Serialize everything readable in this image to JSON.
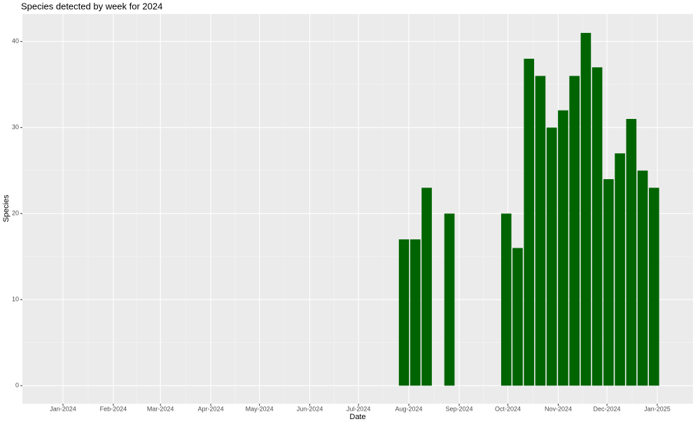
{
  "chart_data": {
    "type": "bar",
    "title": "Species detected by week for 2024",
    "x_label": "Date",
    "y_label": "Species",
    "x": [
      210,
      217,
      224,
      238,
      273,
      280,
      287,
      294,
      301,
      308,
      315,
      322,
      329,
      336,
      343,
      350,
      357,
      364
    ],
    "values": [
      17,
      17,
      23,
      20,
      20,
      16,
      38,
      36,
      30,
      32,
      36,
      41,
      37,
      24,
      27,
      31,
      25,
      23
    ],
    "color": "#006400",
    "xlim": [
      -25,
      388
    ],
    "xticks": [
      {
        "value": 0,
        "label": "Jan-2024"
      },
      {
        "value": 31,
        "label": "Feb-2024"
      },
      {
        "value": 60,
        "label": "Mar-2024"
      },
      {
        "value": 91,
        "label": "Apr-2024"
      },
      {
        "value": 121,
        "label": "May-2024"
      },
      {
        "value": 152,
        "label": "Jun-2024"
      },
      {
        "value": 182,
        "label": "Jul-2024"
      },
      {
        "value": 213,
        "label": "Aug-2024"
      },
      {
        "value": 244,
        "label": "Sep-2024"
      },
      {
        "value": 274,
        "label": "Oct-2024"
      },
      {
        "value": 305,
        "label": "Nov-2024"
      },
      {
        "value": 335,
        "label": "Dec-2024"
      },
      {
        "value": 366,
        "label": "Jan-2025"
      }
    ],
    "ylim": [
      -2.1,
      43.2
    ],
    "yticks": [
      0,
      10,
      20,
      30,
      40
    ],
    "grid": true
  }
}
